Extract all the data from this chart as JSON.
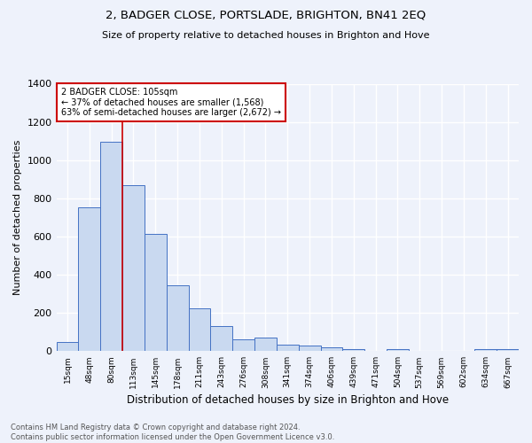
{
  "title": "2, BADGER CLOSE, PORTSLADE, BRIGHTON, BN41 2EQ",
  "subtitle": "Size of property relative to detached houses in Brighton and Hove",
  "xlabel": "Distribution of detached houses by size in Brighton and Hove",
  "ylabel": "Number of detached properties",
  "bin_labels": [
    "15sqm",
    "48sqm",
    "80sqm",
    "113sqm",
    "145sqm",
    "178sqm",
    "211sqm",
    "243sqm",
    "276sqm",
    "308sqm",
    "341sqm",
    "374sqm",
    "406sqm",
    "439sqm",
    "471sqm",
    "504sqm",
    "537sqm",
    "569sqm",
    "602sqm",
    "634sqm",
    "667sqm"
  ],
  "bar_heights": [
    47,
    752,
    1097,
    870,
    616,
    347,
    222,
    130,
    62,
    70,
    32,
    28,
    20,
    13,
    0,
    11,
    0,
    0,
    0,
    11,
    13
  ],
  "bar_color": "#c9d9f0",
  "bar_edge_color": "#4472c4",
  "red_line_color": "#cc0000",
  "annotation_text": "2 BADGER CLOSE: 105sqm\n← 37% of detached houses are smaller (1,568)\n63% of semi-detached houses are larger (2,672) →",
  "annotation_box_color": "white",
  "annotation_box_edge": "#cc0000",
  "ylim": [
    0,
    1400
  ],
  "yticks": [
    0,
    200,
    400,
    600,
    800,
    1000,
    1200,
    1400
  ],
  "footer_line1": "Contains HM Land Registry data © Crown copyright and database right 2024.",
  "footer_line2": "Contains public sector information licensed under the Open Government Licence v3.0.",
  "bg_color": "#eef2fb",
  "grid_color": "#ffffff",
  "title_fontsize": 9.5,
  "subtitle_fontsize": 8,
  "ylabel_fontsize": 8,
  "xlabel_fontsize": 8.5,
  "ytick_fontsize": 8,
  "xtick_fontsize": 6.5,
  "footer_fontsize": 6,
  "annotation_fontsize": 7
}
